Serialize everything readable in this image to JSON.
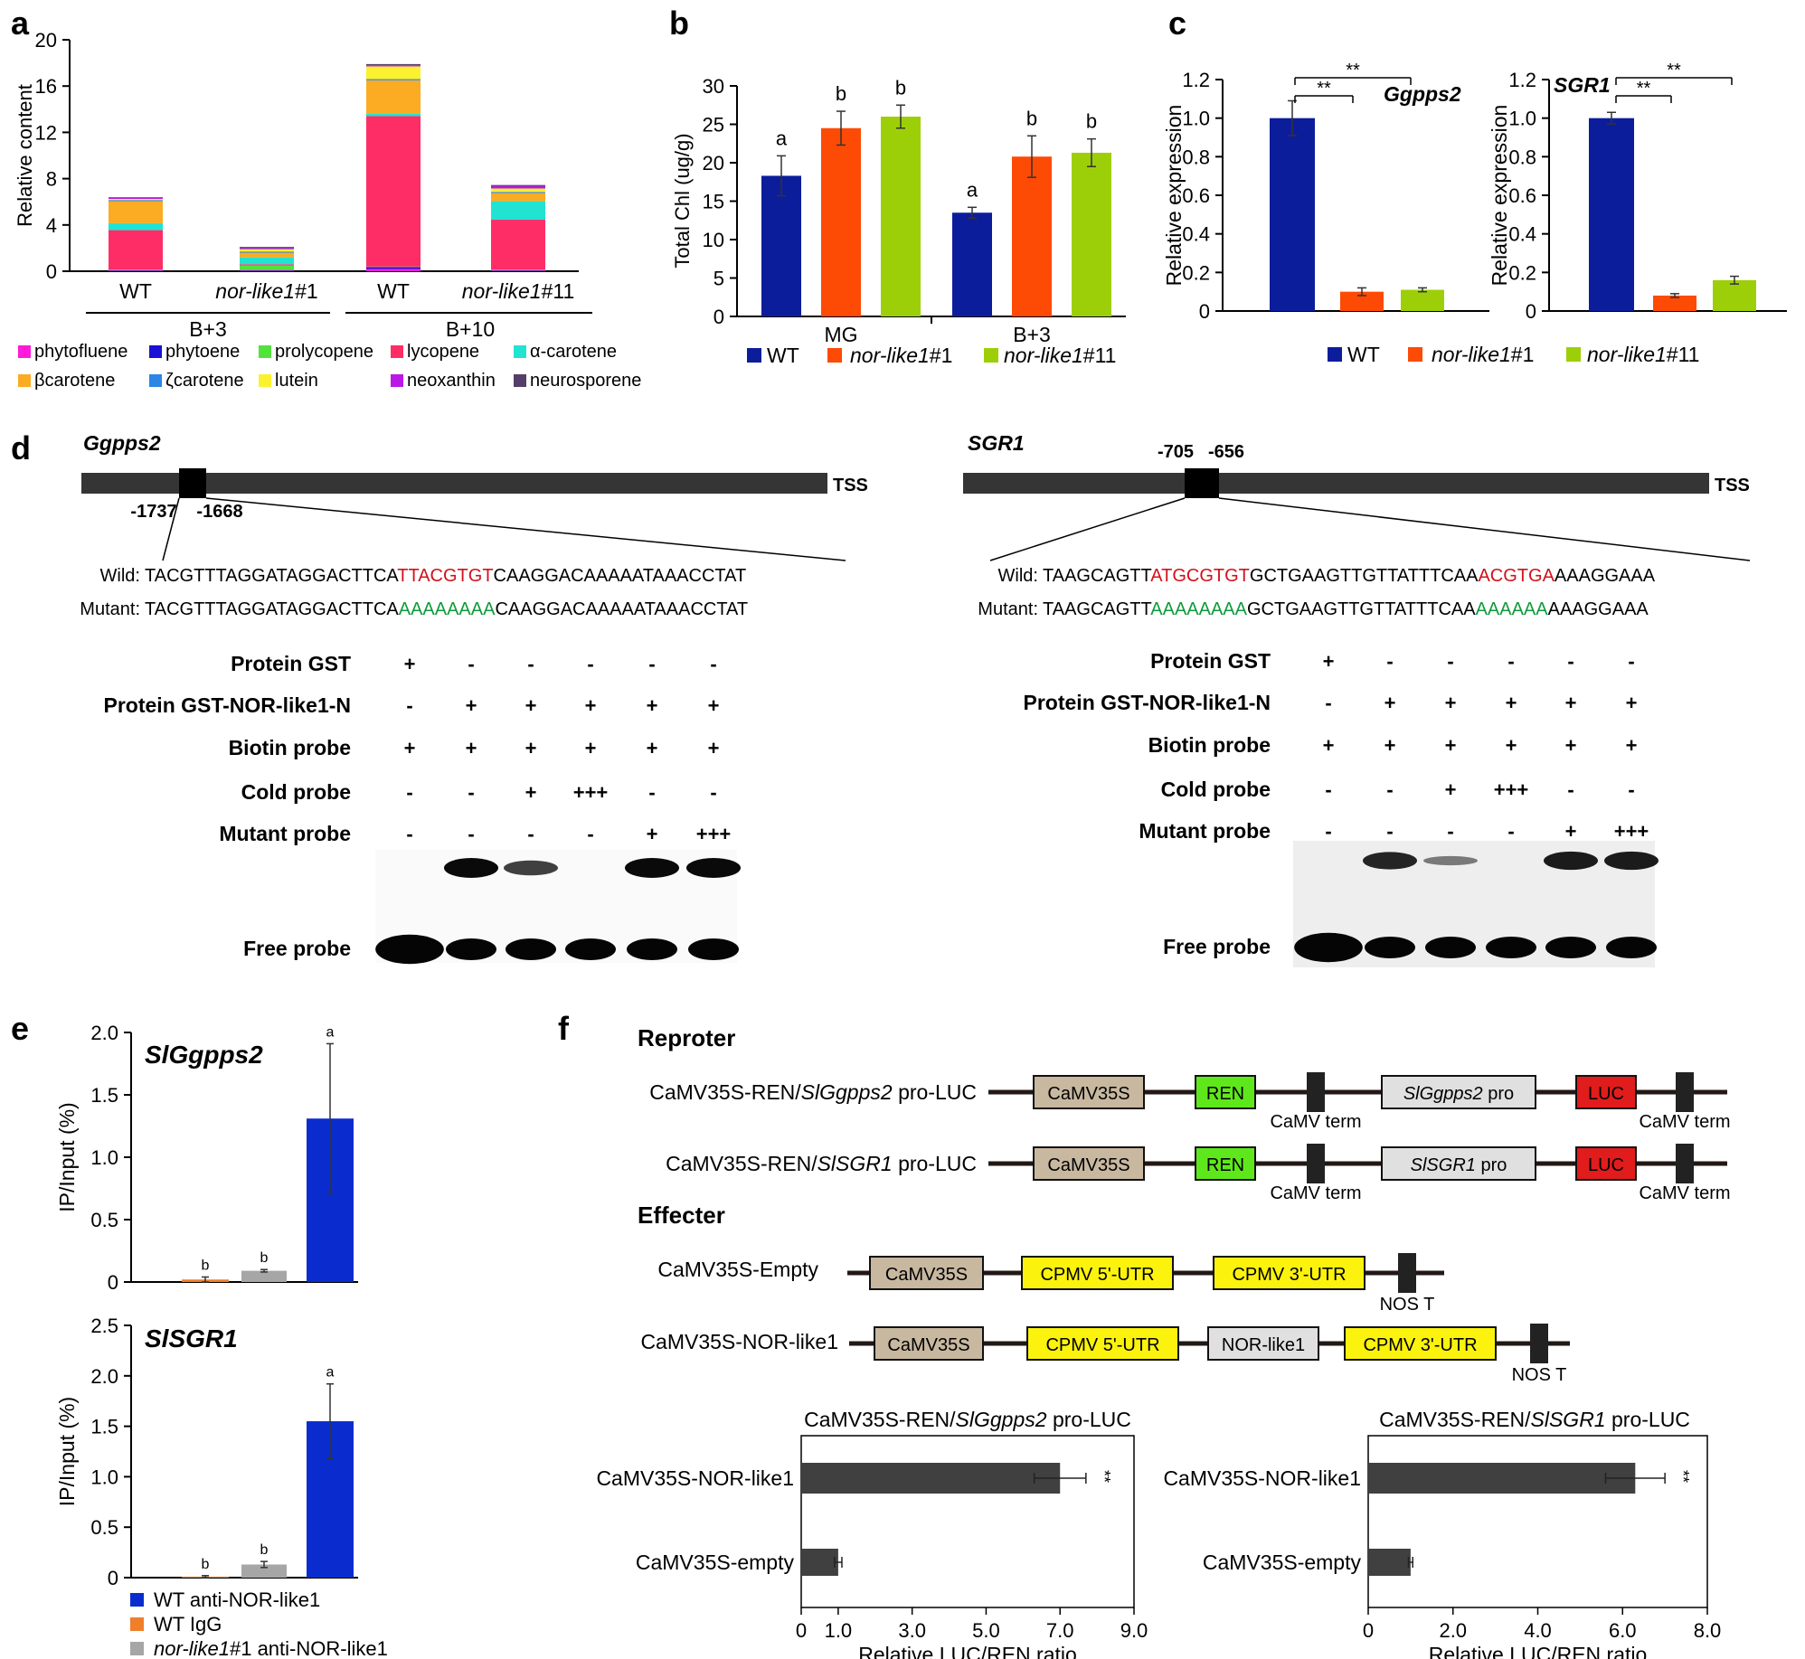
{
  "panel_letters": {
    "a": "a",
    "b": "b",
    "c": "c",
    "d": "d",
    "e": "e",
    "f": "f"
  },
  "colors": {
    "wt": "#0c1d9b",
    "nl1": "#fd4a05",
    "nl11": "#9dcf08",
    "ph_phytofluene": "#ff1ad9",
    "ph_phytoene": "#1b10d6",
    "ph_prolycopene": "#52e23a",
    "ph_lycopene": "#ff2d66",
    "ph_acarotene": "#22e3d2",
    "ph_bcarotene": "#fbac23",
    "ph_zcarotene": "#2b86e6",
    "ph_lutein": "#fbf12f",
    "ph_neoxanthin": "#bb18e7",
    "ph_neurosporene": "#553f68",
    "chip_wt": "#0a2ccf",
    "chip_igg": "#ef7f2a",
    "chip_mut": "#a6a6a6",
    "luc_bar": "#404040",
    "red_seq": "#d0121b",
    "green_seq": "#0f9a3c",
    "camv": "#c8b8a0",
    "ren": "#5ee81c",
    "luc": "#e01c1c",
    "utr": "#fbf20d",
    "pro": "#e0e0e0"
  },
  "chart_data": [
    {
      "panel": "a",
      "type": "bar",
      "stacked": true,
      "ylabel": "Relative content",
      "ylim": [
        0,
        20
      ],
      "yticks": [
        0,
        4,
        8,
        12,
        16,
        20
      ],
      "categories": [
        "WT",
        "nor-like1#1",
        "WT",
        "nor-like1#11"
      ],
      "category_italic_part": [
        "",
        "nor-like1",
        "",
        "nor-like1"
      ],
      "category_suffix": [
        "",
        "#1",
        "",
        "#11"
      ],
      "groups": [
        "B+3",
        "B+10"
      ],
      "series": [
        {
          "name": "phytofluene",
          "color_key": "ph_phytofluene",
          "values": [
            0.05,
            0.05,
            0.2,
            0.05
          ]
        },
        {
          "name": "phytoene",
          "color_key": "ph_phytoene",
          "values": [
            0.05,
            0.05,
            0.15,
            0.05
          ]
        },
        {
          "name": "prolycopene",
          "color_key": "ph_prolycopene",
          "values": [
            0.05,
            0.4,
            0.05,
            0.05
          ]
        },
        {
          "name": "lycopene",
          "color_key": "ph_lycopene",
          "values": [
            3.4,
            0.1,
            13.0,
            4.3
          ]
        },
        {
          "name": "α-carotene",
          "color_key": "ph_acarotene",
          "values": [
            0.6,
            0.6,
            0.2,
            1.6
          ]
        },
        {
          "name": "βcarotene",
          "color_key": "ph_bcarotene",
          "values": [
            1.9,
            0.4,
            2.9,
            0.7
          ]
        },
        {
          "name": "ζcarotene",
          "color_key": "ph_zcarotene",
          "values": [
            0.1,
            0.1,
            0.1,
            0.1
          ]
        },
        {
          "name": "lutein",
          "color_key": "ph_lutein",
          "values": [
            0.1,
            0.2,
            1.1,
            0.3
          ]
        },
        {
          "name": "neoxanthin",
          "color_key": "ph_neoxanthin",
          "values": [
            0.1,
            0.1,
            0.1,
            0.2
          ]
        },
        {
          "name": "neurosporene",
          "color_key": "ph_neurosporene",
          "values": [
            0.05,
            0.1,
            0.1,
            0.1
          ]
        }
      ],
      "legend_rows": [
        [
          "phytofluene",
          "phytoene",
          "prolycopene",
          "lycopene",
          "α-carotene"
        ],
        [
          "βcarotene",
          "ζcarotene",
          "lutein",
          "neoxanthin",
          "neurosporene"
        ]
      ]
    },
    {
      "panel": "b",
      "type": "bar",
      "ylabel": "Total Chl (ug/g)",
      "ylim": [
        0,
        30
      ],
      "yticks": [
        0,
        5,
        10,
        15,
        20,
        25,
        30
      ],
      "categories": [
        "MG",
        "B+3"
      ],
      "series": [
        {
          "name": "WT",
          "color_key": "wt",
          "values": [
            18.3,
            13.5
          ],
          "errors": [
            2.6,
            0.7
          ],
          "letters": [
            "a",
            "a"
          ]
        },
        {
          "name": "nor-like1#1",
          "color_key": "nl1",
          "values": [
            24.5,
            20.8
          ],
          "errors": [
            2.2,
            2.7
          ],
          "letters": [
            "b",
            "b"
          ]
        },
        {
          "name": "nor-like1#11",
          "color_key": "nl11",
          "values": [
            26.0,
            21.3
          ],
          "errors": [
            1.5,
            1.8
          ],
          "letters": [
            "b",
            "b"
          ]
        }
      ]
    },
    {
      "panel": "c-left",
      "type": "bar",
      "title": "Ggpps2",
      "ylabel": "Relative expression",
      "ylim": [
        0,
        1.2
      ],
      "yticks": [
        "0",
        "0.2",
        "0.4",
        "0.6",
        "0.8",
        "1.0",
        "1.2"
      ],
      "categories": [
        "WT",
        "nor-like1#1",
        "nor-like1#11"
      ],
      "values": [
        1.0,
        0.1,
        0.11
      ],
      "errors": [
        0.09,
        0.02,
        0.01
      ],
      "significance": [
        "**",
        "**"
      ]
    },
    {
      "panel": "c-right",
      "type": "bar",
      "title": "SGR1",
      "ylabel": "Relative expression",
      "ylim": [
        0,
        1.2
      ],
      "yticks": [
        "0",
        "0.2",
        "0.4",
        "0.6",
        "0.8",
        "1.0",
        "1.2"
      ],
      "categories": [
        "WT",
        "nor-like1#1",
        "nor-like1#11"
      ],
      "values": [
        1.0,
        0.08,
        0.16
      ],
      "errors": [
        0.03,
        0.01,
        0.02
      ],
      "significance": [
        "**",
        "**"
      ]
    },
    {
      "panel": "e-top",
      "type": "bar",
      "title": "SlGgpps2",
      "ylabel": "IP/Input (%)",
      "ylim": [
        0,
        2.0
      ],
      "yticks": [
        "0",
        "0.5",
        "1.0",
        "1.5",
        "2.0"
      ],
      "categories": [
        "WT IgG",
        "nor-like1#1 anti-NOR-like1",
        "WT anti-NOR-like1"
      ],
      "values": [
        0.02,
        0.09,
        1.31
      ],
      "errors": [
        0.02,
        0.01,
        0.6
      ],
      "letters": [
        "b",
        "b",
        "a"
      ]
    },
    {
      "panel": "e-bottom",
      "type": "bar",
      "title": "SlSGR1",
      "ylabel": "IP/Input (%)",
      "ylim": [
        0,
        2.5
      ],
      "yticks": [
        "0",
        "0.5",
        "1.0",
        "1.5",
        "2.0",
        "2.5"
      ],
      "categories": [
        "WT IgG",
        "nor-like1#1 anti-NOR-like1",
        "WT anti-NOR-like1"
      ],
      "values": [
        0.01,
        0.13,
        1.55
      ],
      "errors": [
        0.01,
        0.03,
        0.37
      ],
      "letters": [
        "b",
        "b",
        "a"
      ]
    },
    {
      "panel": "f-left",
      "type": "bar",
      "orientation": "horizontal",
      "title": "CaMV35S-REN/SlGgpps2 pro-LUC",
      "xlabel": "Relative LUC/REN ratio",
      "xlim": [
        0,
        9.0
      ],
      "xticks": [
        "0",
        "1.0",
        "3.0",
        "5.0",
        "7.0",
        "9.0"
      ],
      "categories": [
        "CaMV35S-NOR-like1",
        "CaMV35S-empty"
      ],
      "values": [
        7.0,
        1.0
      ],
      "errors": [
        0.7,
        0.1
      ],
      "significance": [
        "**",
        ""
      ]
    },
    {
      "panel": "f-right",
      "type": "bar",
      "orientation": "horizontal",
      "title": "CaMV35S-REN/SlSGR1 pro-LUC",
      "xlabel": "Relative LUC/REN ratio",
      "xlim": [
        0,
        8.0
      ],
      "xticks": [
        "0",
        "2.0",
        "4.0",
        "6.0",
        "8.0"
      ],
      "categories": [
        "CaMV35S-NOR-like1",
        "CaMV35S-empty"
      ],
      "values": [
        6.3,
        1.0
      ],
      "errors": [
        0.7,
        0.05
      ],
      "significance": [
        "**",
        ""
      ]
    }
  ],
  "legends": {
    "bc": {
      "wt": "WT",
      "nl_italic": "nor-like1",
      "nl1_suffix": "#1",
      "nl11_suffix": "#11"
    },
    "e": {
      "wt_anti": "WT anti-NOR-like1",
      "wt_igg": "WT IgG",
      "mut_italic": "nor-like1",
      "mut_rest": "#1 anti-NOR-like1"
    }
  },
  "panel_d": {
    "left": {
      "gene": "Ggpps2",
      "tss": "TSS",
      "pos_start": "-1737",
      "pos_end": "-1668",
      "wild_label": "Wild:",
      "mutant_label": "Mutant:",
      "wild_seq": [
        "TACGTTTAGGATAGGACTTCA",
        "TTACGTGT",
        "CAAGGACAAAAATAAACCTAT"
      ],
      "mutant_seq": [
        "TACGTTTAGGATAGGACTTCA",
        "AAAAAAAA",
        "CAAGGACAAAAATAAACCTAT"
      ]
    },
    "right": {
      "gene": "SGR1",
      "tss": "TSS",
      "pos_start": "-705",
      "pos_end": "-656",
      "wild_label": "Wild:",
      "mutant_label": "Mutant:",
      "wild_seq": [
        "TAAGCAGTT",
        "ATGCGTGT",
        "GCTGAAGTTGTTATTTCAA",
        "ACGTGA",
        "AAAGGAAA"
      ],
      "mutant_seq": [
        "TAAGCAGTT",
        "AAAAAAAA",
        "GCTGAAGTTGTTATTTCAA",
        "AAAAAA",
        "AAAGGAAA"
      ]
    },
    "rows": [
      {
        "label": "Protein GST",
        "marks": [
          "+",
          "-",
          "-",
          "-",
          "-",
          "-"
        ]
      },
      {
        "label": "Protein GST-NOR-like1-N",
        "marks": [
          "-",
          "+",
          "+",
          "+",
          "+",
          "+"
        ]
      },
      {
        "label": "Biotin probe",
        "marks": [
          "+",
          "+",
          "+",
          "+",
          "+",
          "+"
        ]
      },
      {
        "label": "Cold probe",
        "marks": [
          "-",
          "-",
          "+",
          "+++",
          "-",
          "-"
        ]
      },
      {
        "label": "Mutant probe",
        "marks": [
          "-",
          "-",
          "-",
          "-",
          "+",
          "+++"
        ]
      }
    ],
    "free_probe": "Free probe",
    "complex_band_intensity_left": [
      0,
      1.0,
      0.7,
      0,
      1.0,
      1.0
    ],
    "complex_band_intensity_right": [
      0,
      0.85,
      0.35,
      0,
      0.9,
      0.9
    ]
  },
  "panel_f": {
    "reporter_title": "Reproter",
    "effector_title": "Effecter",
    "reporters": [
      {
        "pre": "CaMV35S-REN/",
        "it": "SlGgpps2",
        "post": " pro-LUC",
        "pro_it": "SlGgpps2",
        "pro_post": " pro"
      },
      {
        "pre": "CaMV35S-REN/",
        "it": "SlSGR1",
        "post": " pro-LUC",
        "pro_it": "SlSGR1",
        "pro_post": " pro"
      }
    ],
    "effectors": [
      "CaMV35S-Empty",
      "CaMV35S-NOR-like1"
    ],
    "boxes": {
      "camv": "CaMV35S",
      "ren": "REN",
      "luc": "LUC",
      "utr5": "CPMV 5'-UTR",
      "utr3": "CPMV 3'-UTR",
      "nor": "NOR-like1"
    },
    "terms": {
      "camv_term": "CaMV term",
      "nos": "NOS T"
    }
  }
}
